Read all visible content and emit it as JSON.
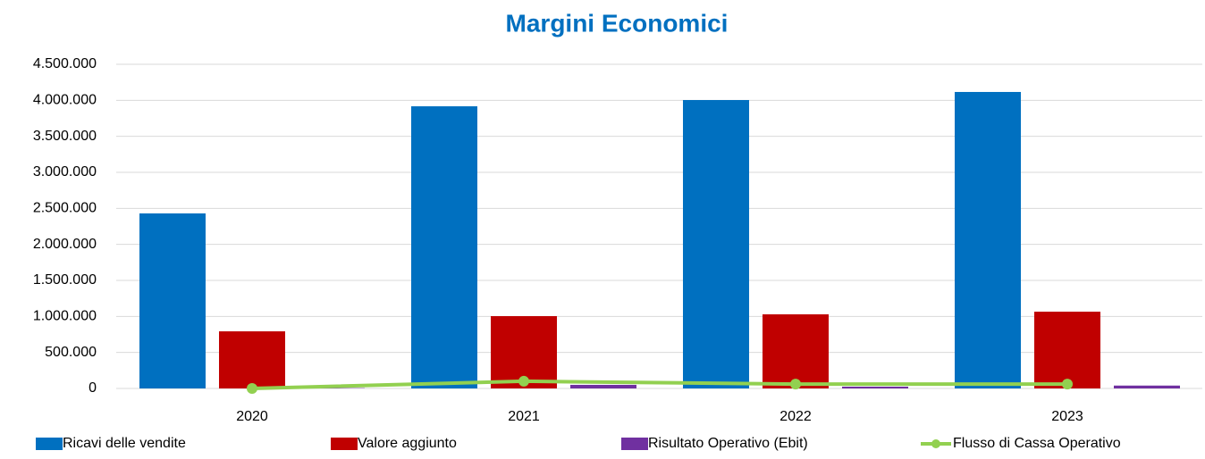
{
  "chart_data": {
    "type": "bar",
    "title": "Margini Economici",
    "categories": [
      "2020",
      "2021",
      "2022",
      "2023"
    ],
    "series": [
      {
        "name": "Ricavi delle vendite",
        "color": "#0070c0",
        "type": "bar",
        "values": [
          2430000,
          3917000,
          4004000,
          4116000
        ]
      },
      {
        "name": "Valore aggiunto",
        "color": "#c00000",
        "type": "bar",
        "values": [
          793000,
          1004000,
          1029000,
          1066000
        ]
      },
      {
        "name": "Risultato Operativo (Ebit)",
        "color": "#7030a0",
        "type": "bar",
        "values": [
          5000,
          50000,
          25000,
          40000
        ]
      },
      {
        "name": "Flusso di Cassa Operativo",
        "color": "#92d050",
        "type": "line",
        "values": [
          0,
          100000,
          60000,
          60000
        ]
      }
    ],
    "ylim": [
      0,
      4500000
    ],
    "yticks": [
      0,
      {
        "value": 500000,
        "label": "500.000"
      },
      {
        "value": 1000000,
        "label": "1.000.000"
      },
      {
        "value": 1500000,
        "label": "1.500.000"
      },
      {
        "value": 2000000,
        "label": "2.000.000"
      },
      {
        "value": 2500000,
        "label": "2.500.000"
      },
      {
        "value": 3000000,
        "label": "3.000.000"
      },
      {
        "value": 3500000,
        "label": "3.500.000"
      },
      {
        "value": 4000000,
        "label": "4.000.000"
      },
      {
        "value": 4500000,
        "label": "4.500.000"
      }
    ],
    "grid": true,
    "legend": "bottom"
  }
}
